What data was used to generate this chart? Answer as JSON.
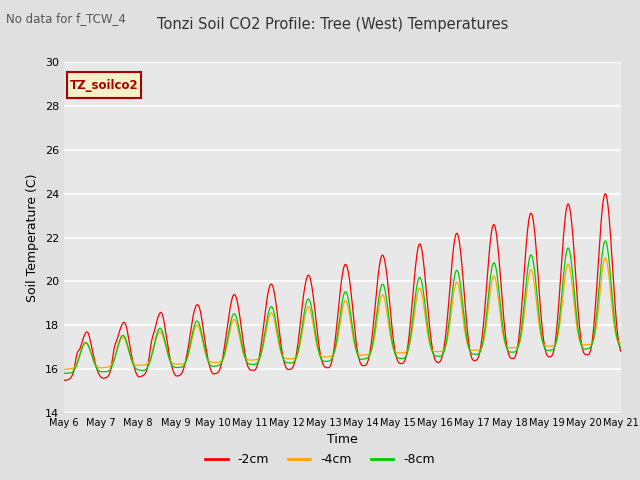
{
  "title": "Tonzi Soil CO2 Profile: Tree (West) Temperatures",
  "no_data_label": "No data for f_TCW_4",
  "xlabel": "Time",
  "ylabel": "Soil Temperature (C)",
  "ylim": [
    14,
    30
  ],
  "yticks": [
    14,
    16,
    18,
    20,
    22,
    24,
    26,
    28,
    30
  ],
  "xtick_labels": [
    "May 6",
    "May 7",
    "May 8",
    "May 9",
    "May 10",
    "May 11",
    "May 12",
    "May 13",
    "May 14",
    "May 15",
    "May 16",
    "May 17",
    "May 18",
    "May 19",
    "May 20",
    "May 21"
  ],
  "series_colors": [
    "#ff0000",
    "#ffa500",
    "#00cc00"
  ],
  "series_labels": [
    "-2cm",
    "-4cm",
    "-8cm"
  ],
  "legend_box_facecolor": "#f5f0c8",
  "legend_box_edge": "#aa0000",
  "legend_text": "TZ_soilco2",
  "bg_color": "#e0e0e0",
  "plot_bg_color": "#e8e8e8",
  "grid_color": "#ffffff",
  "n_points": 960
}
